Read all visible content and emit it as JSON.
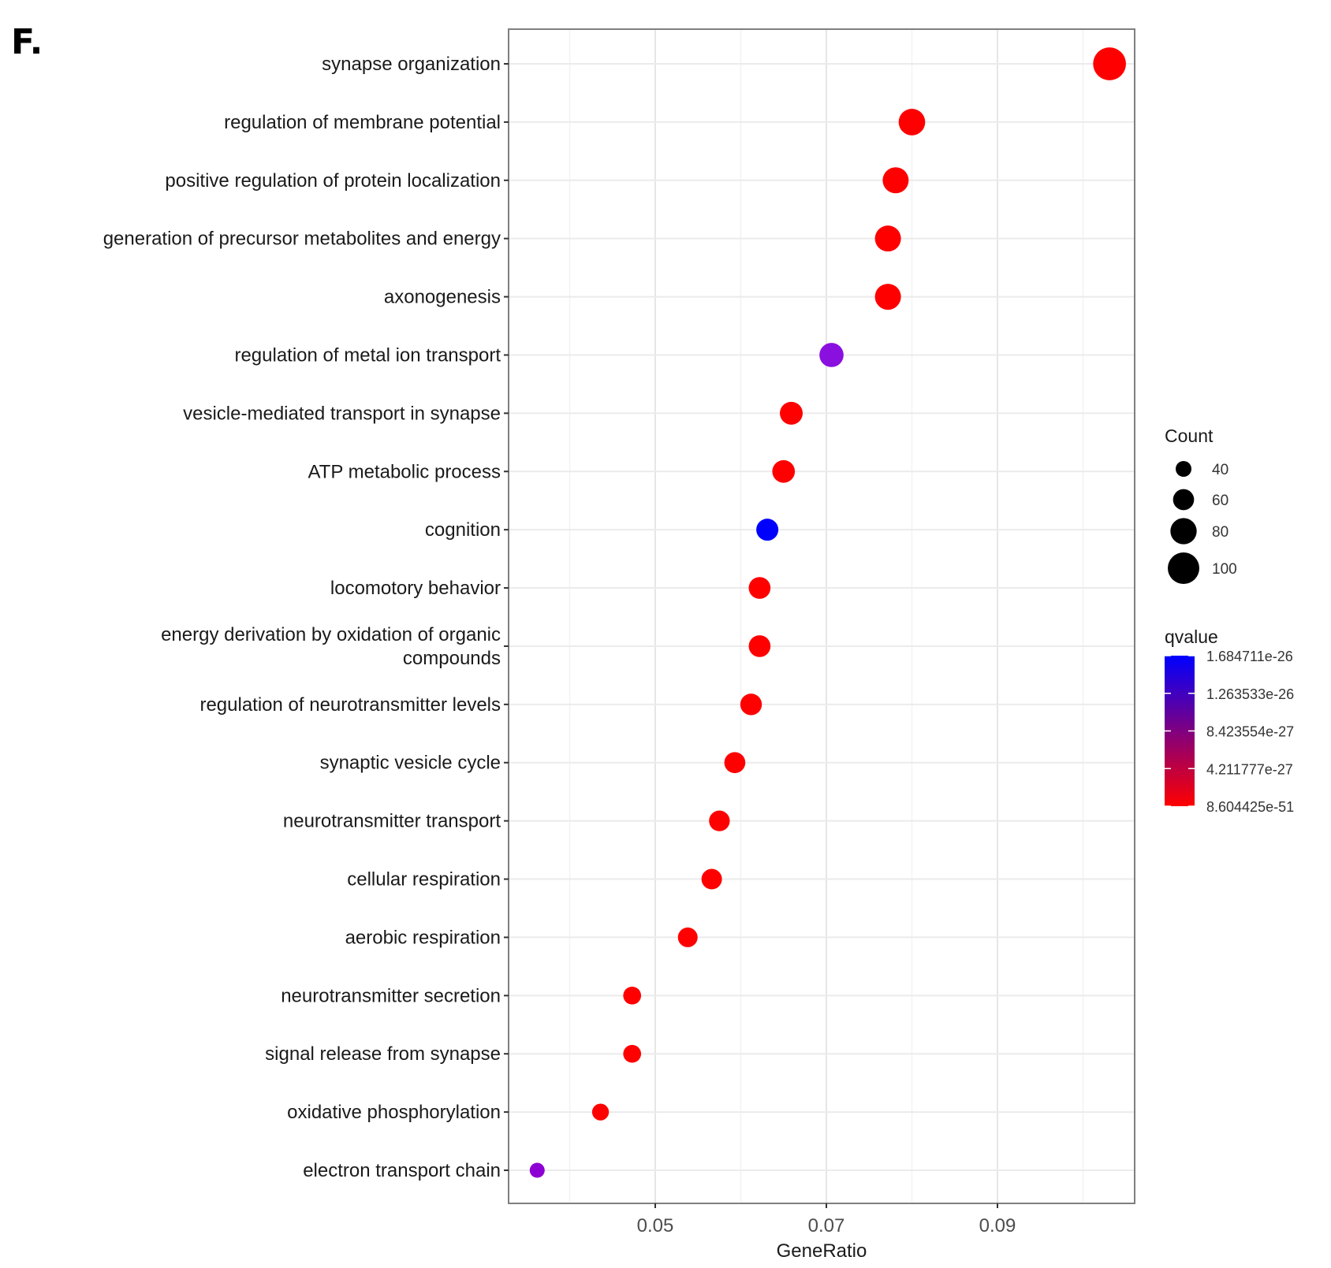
{
  "panel_label": "F.",
  "chart_data": {
    "type": "scatter",
    "subtype": "dot-plot",
    "title": "",
    "xlabel": "GeneRatio",
    "ylabel": "",
    "xlim": [
      0.033,
      0.1065
    ],
    "x_major_ticks": [
      0.05,
      0.07,
      0.09
    ],
    "x_tick_labels": [
      "0.05",
      "0.07",
      "0.09"
    ],
    "x_minor_gridlines": [
      0.04,
      0.06,
      0.08,
      0.1
    ],
    "grid": true,
    "categories": [
      "synapse organization",
      "regulation of membrane potential",
      "positive regulation of protein localization",
      "generation of precursor metabolites and energy",
      "axonogenesis",
      "regulation of metal ion transport",
      "vesicle-mediated transport in synapse",
      "ATP metabolic process",
      "cognition",
      "locomotory behavior",
      "energy derivation by oxidation of organic compounds",
      "regulation of neurotransmitter levels",
      "synaptic vesicle cycle",
      "neurotransmitter transport",
      "cellular respiration",
      "aerobic respiration",
      "neurotransmitter secretion",
      "signal release from synapse",
      "oxidative phosphorylation",
      "electron transport chain"
    ],
    "category_label_lines": {
      "energy derivation by oxidation of organic compounds": [
        "energy derivation by oxidation of organic",
        "compounds"
      ]
    },
    "points": [
      {
        "term": "synapse organization",
        "GeneRatio": 0.1031,
        "Count": 105,
        "qvalue": 8.604425e-51,
        "color": "#ff0000"
      },
      {
        "term": "regulation of membrane potential",
        "GeneRatio": 0.08,
        "Count": 81,
        "qvalue": 8.604425e-51,
        "color": "#ff0000"
      },
      {
        "term": "positive regulation of protein localization",
        "GeneRatio": 0.0781,
        "Count": 79,
        "qvalue": 8.604425e-51,
        "color": "#ff0000"
      },
      {
        "term": "generation of precursor metabolites and energy",
        "GeneRatio": 0.0772,
        "Count": 79,
        "qvalue": 8.604425e-51,
        "color": "#ff0000"
      },
      {
        "term": "axonogenesis",
        "GeneRatio": 0.0772,
        "Count": 79,
        "qvalue": 8.604425e-51,
        "color": "#ff0000"
      },
      {
        "term": "regulation of metal ion transport",
        "GeneRatio": 0.0706,
        "Count": 72,
        "qvalue": 1.15e-26,
        "color": "#8a10e0"
      },
      {
        "term": "vesicle-mediated transport in synapse",
        "GeneRatio": 0.0659,
        "Count": 67,
        "qvalue": 8.604425e-51,
        "color": "#ff0000"
      },
      {
        "term": "ATP metabolic process",
        "GeneRatio": 0.065,
        "Count": 66,
        "qvalue": 8.604425e-51,
        "color": "#ff0000"
      },
      {
        "term": "cognition",
        "GeneRatio": 0.0631,
        "Count": 64,
        "qvalue": 1.684711e-26,
        "color": "#0000ff"
      },
      {
        "term": "locomotory behavior",
        "GeneRatio": 0.0622,
        "Count": 63,
        "qvalue": 8.604425e-51,
        "color": "#ff0000"
      },
      {
        "term": "energy derivation by oxidation of organic compounds",
        "GeneRatio": 0.0622,
        "Count": 63,
        "qvalue": 8.604425e-51,
        "color": "#ff0000"
      },
      {
        "term": "regulation of neurotransmitter levels",
        "GeneRatio": 0.0612,
        "Count": 62,
        "qvalue": 8.604425e-51,
        "color": "#ff0000"
      },
      {
        "term": "synaptic vesicle cycle",
        "GeneRatio": 0.0593,
        "Count": 60,
        "qvalue": 8.604425e-51,
        "color": "#ff0000"
      },
      {
        "term": "neurotransmitter transport",
        "GeneRatio": 0.0575,
        "Count": 59,
        "qvalue": 8.604425e-51,
        "color": "#ff0000"
      },
      {
        "term": "cellular respiration",
        "GeneRatio": 0.0566,
        "Count": 58,
        "qvalue": 8.604425e-51,
        "color": "#ff0000"
      },
      {
        "term": "aerobic respiration",
        "GeneRatio": 0.0538,
        "Count": 55,
        "qvalue": 8.604425e-51,
        "color": "#ff0000"
      },
      {
        "term": "neurotransmitter secretion",
        "GeneRatio": 0.0473,
        "Count": 48,
        "qvalue": 8.604425e-51,
        "color": "#ff0000"
      },
      {
        "term": "signal release from synapse",
        "GeneRatio": 0.0473,
        "Count": 48,
        "qvalue": 8.604425e-51,
        "color": "#ff0000"
      },
      {
        "term": "oxidative phosphorylation",
        "GeneRatio": 0.0436,
        "Count": 44,
        "qvalue": 8.604425e-51,
        "color": "#ff0000"
      },
      {
        "term": "electron transport chain",
        "GeneRatio": 0.0362,
        "Count": 37,
        "qvalue": 1.1e-26,
        "color": "#8c00d4"
      }
    ],
    "legend": {
      "size": {
        "title": "Count",
        "values": [
          40,
          60,
          80,
          100
        ],
        "labels": [
          "40",
          "60",
          "80",
          "100"
        ]
      },
      "color": {
        "title": "qvalue",
        "labels": [
          "1.684711e-26",
          "1.263533e-26",
          "8.423554e-27",
          "4.211777e-27",
          "8.604425e-51"
        ],
        "high_color": "#0000ff",
        "low_color": "#ff0000"
      },
      "placement": "right"
    }
  }
}
